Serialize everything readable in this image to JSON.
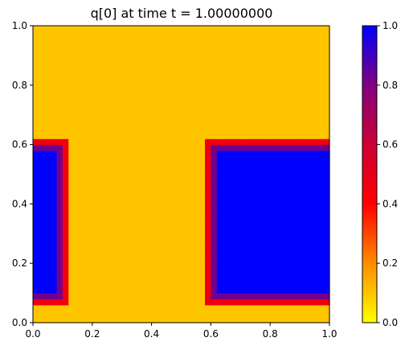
{
  "chart_data": {
    "type": "heatmap",
    "title": "q[0] at time t =     1.00000000",
    "xlim": [
      0,
      1
    ],
    "ylim": [
      0,
      1
    ],
    "x_ticks": [
      "0.0",
      "0.2",
      "0.4",
      "0.6",
      "0.8",
      "1.0"
    ],
    "y_ticks": [
      "0.0",
      "0.2",
      "0.4",
      "0.6",
      "0.8",
      "1.0"
    ],
    "colorbar": {
      "range": [
        0,
        1
      ],
      "ticks": [
        "0.0",
        "0.2",
        "0.4",
        "0.6",
        "0.8",
        "1.0"
      ],
      "colormap_stops": [
        {
          "value": 0.0,
          "color": "#ffff00"
        },
        {
          "value": 0.2,
          "color": "#ff8c00"
        },
        {
          "value": 0.4,
          "color": "#ff0000"
        },
        {
          "value": 0.6,
          "color": "#cc0033"
        },
        {
          "value": 0.8,
          "color": "#800080"
        },
        {
          "value": 1.0,
          "color": "#0000ff"
        }
      ]
    },
    "grid": {
      "nx": 50,
      "ny": 50,
      "background_value": 0.1,
      "blocks": [
        {
          "x": [
            0.0,
            0.08
          ],
          "y": [
            0.1,
            0.58
          ],
          "value": 1.0
        },
        {
          "x": [
            0.62,
            1.0
          ],
          "y": [
            0.1,
            0.58
          ],
          "value": 1.0
        }
      ],
      "edge_width": 0.05
    }
  }
}
